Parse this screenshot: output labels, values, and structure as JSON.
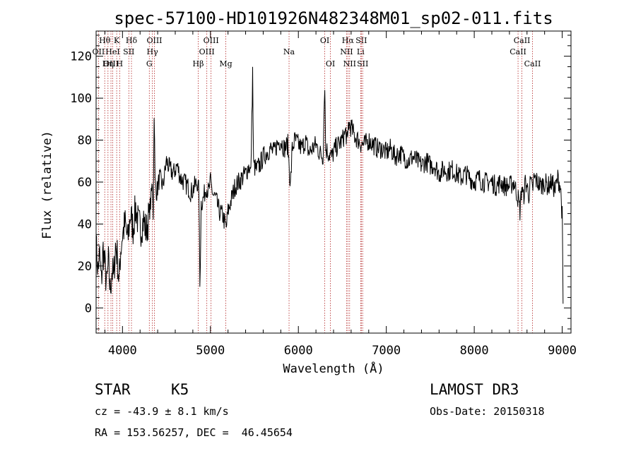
{
  "chart_data": {
    "type": "line",
    "title": "spec-57100-HD101926N482348M01_sp02-011.fits",
    "xlabel": "Wavelength (Å)",
    "ylabel": "Flux (relative)",
    "xlim": [
      3700,
      9100
    ],
    "ylim": [
      -12,
      132
    ],
    "xticks": [
      4000,
      5000,
      6000,
      7000,
      8000,
      9000
    ],
    "yticks": [
      0,
      20,
      40,
      60,
      80,
      100,
      120
    ],
    "grid": false,
    "spectrum_points": [
      [
        3700,
        30
      ],
      [
        3720,
        18
      ],
      [
        3740,
        25
      ],
      [
        3760,
        12
      ],
      [
        3780,
        28
      ],
      [
        3800,
        20
      ],
      [
        3820,
        10
      ],
      [
        3840,
        22
      ],
      [
        3860,
        8
      ],
      [
        3880,
        18
      ],
      [
        3900,
        14
      ],
      [
        3920,
        30
      ],
      [
        3940,
        25
      ],
      [
        3960,
        12
      ],
      [
        3980,
        28
      ],
      [
        4000,
        35
      ],
      [
        4030,
        40
      ],
      [
        4060,
        32
      ],
      [
        4090,
        45
      ],
      [
        4120,
        38
      ],
      [
        4150,
        48
      ],
      [
        4180,
        40
      ],
      [
        4210,
        38
      ],
      [
        4240,
        42
      ],
      [
        4270,
        36
      ],
      [
        4300,
        44
      ],
      [
        4320,
        50
      ],
      [
        4340,
        60
      ],
      [
        4350,
        45
      ],
      [
        4360,
        95
      ],
      [
        4370,
        60
      ],
      [
        4390,
        55
      ],
      [
        4420,
        62
      ],
      [
        4460,
        58
      ],
      [
        4500,
        70
      ],
      [
        4540,
        66
      ],
      [
        4580,
        64
      ],
      [
        4620,
        68
      ],
      [
        4660,
        62
      ],
      [
        4700,
        60
      ],
      [
        4740,
        58
      ],
      [
        4780,
        55
      ],
      [
        4820,
        58
      ],
      [
        4850,
        60
      ],
      [
        4870,
        55
      ],
      [
        4880,
        10
      ],
      [
        4895,
        50
      ],
      [
        4920,
        52
      ],
      [
        4950,
        58
      ],
      [
        4980,
        55
      ],
      [
        5000,
        60
      ],
      [
        5030,
        54
      ],
      [
        5060,
        52
      ],
      [
        5100,
        46
      ],
      [
        5140,
        44
      ],
      [
        5180,
        38
      ],
      [
        5200,
        46
      ],
      [
        5240,
        52
      ],
      [
        5280,
        58
      ],
      [
        5320,
        60
      ],
      [
        5360,
        62
      ],
      [
        5400,
        64
      ],
      [
        5440,
        68
      ],
      [
        5460,
        64
      ],
      [
        5480,
        113
      ],
      [
        5490,
        68
      ],
      [
        5520,
        66
      ],
      [
        5560,
        68
      ],
      [
        5600,
        72
      ],
      [
        5640,
        74
      ],
      [
        5680,
        76
      ],
      [
        5720,
        74
      ],
      [
        5760,
        78
      ],
      [
        5800,
        80
      ],
      [
        5840,
        76
      ],
      [
        5880,
        78
      ],
      [
        5910,
        58
      ],
      [
        5930,
        76
      ],
      [
        5960,
        80
      ],
      [
        6000,
        78
      ],
      [
        6040,
        76
      ],
      [
        6080,
        80
      ],
      [
        6120,
        74
      ],
      [
        6160,
        76
      ],
      [
        6200,
        78
      ],
      [
        6240,
        74
      ],
      [
        6280,
        72
      ],
      [
        6300,
        108
      ],
      [
        6310,
        76
      ],
      [
        6340,
        74
      ],
      [
        6380,
        72
      ],
      [
        6420,
        76
      ],
      [
        6460,
        78
      ],
      [
        6500,
        80
      ],
      [
        6540,
        84
      ],
      [
        6560,
        78
      ],
      [
        6570,
        88
      ],
      [
        6600,
        86
      ],
      [
        6640,
        82
      ],
      [
        6680,
        80
      ],
      [
        6720,
        78
      ],
      [
        6760,
        78
      ],
      [
        6800,
        80
      ],
      [
        6850,
        78
      ],
      [
        6900,
        76
      ],
      [
        6950,
        76
      ],
      [
        7000,
        74
      ],
      [
        7050,
        76
      ],
      [
        7100,
        72
      ],
      [
        7150,
        74
      ],
      [
        7200,
        72
      ],
      [
        7250,
        70
      ],
      [
        7300,
        72
      ],
      [
        7350,
        70
      ],
      [
        7400,
        68
      ],
      [
        7450,
        70
      ],
      [
        7500,
        68
      ],
      [
        7550,
        68
      ],
      [
        7600,
        64
      ],
      [
        7650,
        66
      ],
      [
        7700,
        65
      ],
      [
        7750,
        66
      ],
      [
        7800,
        64
      ],
      [
        7850,
        62
      ],
      [
        7900,
        64
      ],
      [
        7950,
        62
      ],
      [
        8000,
        60
      ],
      [
        8050,
        62
      ],
      [
        8100,
        60
      ],
      [
        8150,
        60
      ],
      [
        8200,
        60
      ],
      [
        8250,
        58
      ],
      [
        8300,
        60
      ],
      [
        8350,
        58
      ],
      [
        8400,
        58
      ],
      [
        8450,
        60
      ],
      [
        8500,
        52
      ],
      [
        8520,
        46
      ],
      [
        8540,
        58
      ],
      [
        8560,
        52
      ],
      [
        8580,
        60
      ],
      [
        8600,
        58
      ],
      [
        8620,
        54
      ],
      [
        8640,
        60
      ],
      [
        8662,
        56
      ],
      [
        8680,
        62
      ],
      [
        8720,
        60
      ],
      [
        8760,
        58
      ],
      [
        8800,
        60
      ],
      [
        8840,
        58
      ],
      [
        8880,
        60
      ],
      [
        8920,
        56
      ],
      [
        8950,
        62
      ],
      [
        8980,
        58
      ],
      [
        9000,
        44
      ],
      [
        9010,
        2
      ]
    ],
    "emission_lines": [
      {
        "label": "Hθ",
        "wavelength": 3798,
        "row": 1
      },
      {
        "label": "OII",
        "wavelength": 3727,
        "row": 2
      },
      {
        "label": "OIII",
        "wavelength": 3869,
        "row": 3
      },
      {
        "label": "K",
        "wavelength": 3934,
        "row": 1
      },
      {
        "label": "HeI",
        "wavelength": 3889,
        "row": 2
      },
      {
        "label": "Hη",
        "wavelength": 3835,
        "row": 3
      },
      {
        "label": "H",
        "wavelength": 3968,
        "row": 3
      },
      {
        "label": "SII",
        "wavelength": 4072,
        "row": 2
      },
      {
        "label": "Hδ",
        "wavelength": 4102,
        "row": 1
      },
      {
        "label": "OIII",
        "wavelength": 4363,
        "row": 1
      },
      {
        "label": "Hγ",
        "wavelength": 4340,
        "row": 2
      },
      {
        "label": "G",
        "wavelength": 4305,
        "row": 3
      },
      {
        "label": "Hβ",
        "wavelength": 4861,
        "row": 3
      },
      {
        "label": "OIII",
        "wavelength": 5007,
        "row": 1
      },
      {
        "label": "OIII",
        "wavelength": 4959,
        "row": 2
      },
      {
        "label": "Mg",
        "wavelength": 5175,
        "row": 3
      },
      {
        "label": "Na",
        "wavelength": 5894,
        "row": 2
      },
      {
        "label": "OI",
        "wavelength": 6300,
        "row": 1
      },
      {
        "label": "OI",
        "wavelength": 6364,
        "row": 3
      },
      {
        "label": "Hα",
        "wavelength": 6563,
        "row": 1
      },
      {
        "label": "NII",
        "wavelength": 6548,
        "row": 2
      },
      {
        "label": "NII",
        "wavelength": 6583,
        "row": 3
      },
      {
        "label": "SII",
        "wavelength": 6716,
        "row": 1
      },
      {
        "label": "Li",
        "wavelength": 6708,
        "row": 2
      },
      {
        "label": "SII",
        "wavelength": 6731,
        "row": 3
      },
      {
        "label": "CaII",
        "wavelength": 8542,
        "row": 1
      },
      {
        "label": "CaII",
        "wavelength": 8498,
        "row": 2
      },
      {
        "label": "CaII",
        "wavelength": 8662,
        "row": 3
      }
    ],
    "line_color": "#000000",
    "marker_line_color": "#b22222"
  },
  "footer": {
    "object_class": "STAR",
    "subclass": "K5",
    "survey": "LAMOST DR3",
    "redshift": "cz = -43.9 ± 8.1 km/s",
    "obs_date": "Obs-Date: 20150318",
    "coords": "RA = 153.56257, DEC =  46.45654"
  }
}
